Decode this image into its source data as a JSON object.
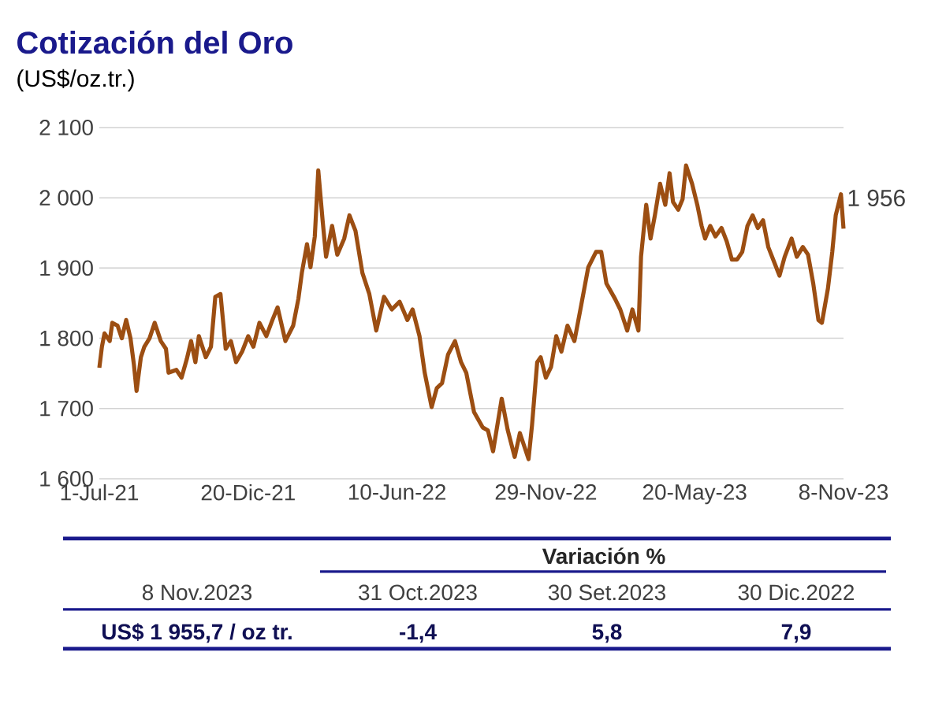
{
  "chart_data": {
    "type": "line",
    "title": "Cotización del Oro",
    "subtitle": "(US$/oz.tr.)",
    "x": [
      "2021-07-01",
      "2021-07-04",
      "2021-07-07",
      "2021-07-13",
      "2021-07-16",
      "2021-07-22",
      "2021-07-27",
      "2021-08-01",
      "2021-08-06",
      "2021-08-10",
      "2021-08-13",
      "2021-08-18",
      "2021-08-22",
      "2021-08-28",
      "2021-09-03",
      "2021-09-10",
      "2021-09-16",
      "2021-09-19",
      "2021-09-28",
      "2021-10-04",
      "2021-10-10",
      "2021-10-15",
      "2021-10-20",
      "2021-10-24",
      "2021-11-01",
      "2021-11-07",
      "2021-11-12",
      "2021-11-18",
      "2021-11-24",
      "2021-11-30",
      "2021-12-06",
      "2021-12-13",
      "2021-12-20",
      "2021-12-26",
      "2022-01-02",
      "2022-01-10",
      "2022-01-17",
      "2022-01-23",
      "2022-02-01",
      "2022-02-10",
      "2022-02-16",
      "2022-02-20",
      "2022-02-26",
      "2022-03-02",
      "2022-03-07",
      "2022-03-11",
      "2022-03-16",
      "2022-03-20",
      "2022-03-27",
      "2022-04-02",
      "2022-04-10",
      "2022-04-16",
      "2022-04-23",
      "2022-05-01",
      "2022-05-09",
      "2022-05-17",
      "2022-05-26",
      "2022-06-04",
      "2022-06-13",
      "2022-06-22",
      "2022-06-28",
      "2022-07-06",
      "2022-07-12",
      "2022-07-20",
      "2022-07-26",
      "2022-08-01",
      "2022-08-08",
      "2022-08-16",
      "2022-08-23",
      "2022-08-29",
      "2022-09-07",
      "2022-09-17",
      "2022-09-23",
      "2022-09-29",
      "2022-10-09",
      "2022-10-16",
      "2022-10-24",
      "2022-10-30",
      "2022-11-09",
      "2022-11-13",
      "2022-11-19",
      "2022-11-23",
      "2022-11-29",
      "2022-12-05",
      "2022-12-11",
      "2022-12-17",
      "2022-12-24",
      "2023-01-01",
      "2023-01-09",
      "2023-01-17",
      "2023-01-26",
      "2023-02-01",
      "2023-02-07",
      "2023-02-17",
      "2023-02-23",
      "2023-03-03",
      "2023-03-09",
      "2023-03-16",
      "2023-03-19",
      "2023-03-25",
      "2023-03-30",
      "2023-04-04",
      "2023-04-10",
      "2023-04-16",
      "2023-04-21",
      "2023-04-25",
      "2023-05-01",
      "2023-05-06",
      "2023-05-10",
      "2023-05-17",
      "2023-05-23",
      "2023-05-28",
      "2023-06-01",
      "2023-06-07",
      "2023-06-13",
      "2023-06-20",
      "2023-06-26",
      "2023-07-02",
      "2023-07-08",
      "2023-07-14",
      "2023-07-20",
      "2023-07-26",
      "2023-08-01",
      "2023-08-07",
      "2023-08-13",
      "2023-08-20",
      "2023-08-26",
      "2023-09-01",
      "2023-09-09",
      "2023-09-15",
      "2023-09-22",
      "2023-09-28",
      "2023-10-04",
      "2023-10-10",
      "2023-10-14",
      "2023-10-21",
      "2023-10-26",
      "2023-10-30",
      "2023-11-05",
      "2023-11-08"
    ],
    "values": [
      1758,
      1788,
      1807,
      1796,
      1822,
      1818,
      1800,
      1826,
      1800,
      1762,
      1725,
      1773,
      1788,
      1800,
      1822,
      1796,
      1785,
      1751,
      1755,
      1744,
      1770,
      1796,
      1766,
      1803,
      1773,
      1788,
      1859,
      1863,
      1785,
      1796,
      1766,
      1781,
      1803,
      1788,
      1822,
      1803,
      1826,
      1844,
      1796,
      1818,
      1856,
      1893,
      1934,
      1901,
      1945,
      2039,
      1968,
      1916,
      1960,
      1919,
      1942,
      1975,
      1953,
      1893,
      1863,
      1811,
      1859,
      1841,
      1852,
      1826,
      1841,
      1803,
      1751,
      1702,
      1729,
      1736,
      1777,
      1796,
      1766,
      1751,
      1695,
      1673,
      1669,
      1639,
      1714,
      1669,
      1631,
      1665,
      1628,
      1676,
      1766,
      1773,
      1744,
      1759,
      1803,
      1781,
      1818,
      1796,
      1848,
      1901,
      1923,
      1923,
      1878,
      1856,
      1841,
      1811,
      1841,
      1811,
      1916,
      1990,
      1942,
      1975,
      2020,
      1990,
      2035,
      1994,
      1983,
      1998,
      2046,
      2020,
      1990,
      1960,
      1942,
      1960,
      1945,
      1957,
      1938,
      1912,
      1912,
      1923,
      1960,
      1975,
      1957,
      1968,
      1930,
      1908,
      1889,
      1916,
      1942,
      1916,
      1930,
      1919,
      1878,
      1826,
      1822,
      1871,
      1923,
      1975,
      2005,
      1956
    ],
    "color": "#9c4e12",
    "xlim": [
      "2021-07-01",
      "2023-11-08"
    ],
    "xticks": [
      {
        "value": "2021-07-01",
        "label": "1-Jul-21"
      },
      {
        "value": "2021-12-20",
        "label": "20-Dic-21"
      },
      {
        "value": "2022-06-10",
        "label": "10-Jun-22"
      },
      {
        "value": "2022-11-29",
        "label": "29-Nov-22"
      },
      {
        "value": "2023-05-20",
        "label": "20-May-23"
      },
      {
        "value": "2023-11-08",
        "label": "8-Nov-23"
      }
    ],
    "ylim": [
      1600,
      2100
    ],
    "yticks": [
      {
        "value": 1600,
        "label": "1 600"
      },
      {
        "value": 1700,
        "label": "1 700"
      },
      {
        "value": 1800,
        "label": "1 800"
      },
      {
        "value": 1900,
        "label": "1 900"
      },
      {
        "value": 2000,
        "label": "2 000"
      },
      {
        "value": 2100,
        "label": "2 100"
      }
    ],
    "grid": "y",
    "annotations": [
      {
        "text": "1 956",
        "x": "2023-11-08",
        "y": 1956
      },
      "Variación %",
      "8 Nov.2023",
      "31 Oct.2023",
      "30 Set.2023",
      "30 Dic.2022",
      "US$ 1 955,7 / oz tr.",
      "-1,4",
      "5,8",
      "7,9"
    ]
  }
}
